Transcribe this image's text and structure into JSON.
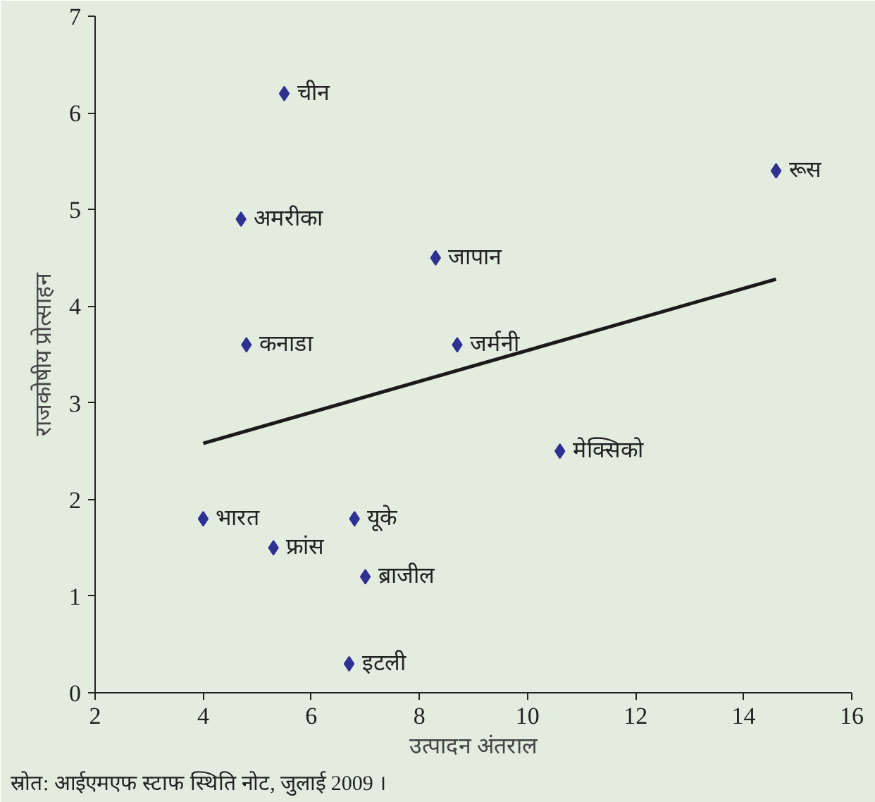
{
  "chart_data": {
    "type": "scatter",
    "xlabel": "उत्पादन अंतराल",
    "ylabel": "राजकोषीय प्रोत्साहन",
    "series": [
      {
        "color": "#2e3192",
        "marker": "diamond",
        "x": [
          5.5,
          4.7,
          8.3,
          4.8,
          8.7,
          14.6,
          10.6,
          4.0,
          6.8,
          5.3,
          7.0,
          6.7
        ],
        "values": [
          6.2,
          4.9,
          4.5,
          3.6,
          3.6,
          5.4,
          2.5,
          1.8,
          1.8,
          1.5,
          1.2,
          0.3
        ]
      },
      {
        "type": "line",
        "marker": "none",
        "color": "#1a1a1a",
        "x": [
          4.0,
          14.6
        ],
        "values": [
          2.58,
          4.28
        ]
      }
    ],
    "annotations": [
      {
        "text": "चीन",
        "x": 5.5,
        "y": 6.2
      },
      {
        "text": "अमरीका",
        "x": 4.7,
        "y": 4.9
      },
      {
        "text": "जापान",
        "x": 8.3,
        "y": 4.5
      },
      {
        "text": "कनाडा",
        "x": 4.8,
        "y": 3.6
      },
      {
        "text": "जर्मनी",
        "x": 8.7,
        "y": 3.6
      },
      {
        "text": "रूस",
        "x": 14.6,
        "y": 5.4
      },
      {
        "text": "मेक्सिको",
        "x": 10.6,
        "y": 2.5
      },
      {
        "text": "भारत",
        "x": 4.0,
        "y": 1.8
      },
      {
        "text": "यूके",
        "x": 6.8,
        "y": 1.8
      },
      {
        "text": "फ्रांस",
        "x": 5.3,
        "y": 1.5
      },
      {
        "text": "ब्राजील",
        "x": 7.0,
        "y": 1.2
      },
      {
        "text": "इटली",
        "x": 6.7,
        "y": 0.3
      },
      "स्रोत: आईएमएफ स्टाफ स्थिति नोट, जुलाई 2009 ।"
    ],
    "xlim": [
      2,
      16
    ],
    "ylim": [
      0,
      7
    ],
    "xticks": [
      2,
      4,
      6,
      8,
      10,
      12,
      14,
      16
    ],
    "yticks": [
      0,
      1,
      2,
      3,
      4,
      5,
      6,
      7
    ],
    "grid": false,
    "line_style": "solid"
  }
}
